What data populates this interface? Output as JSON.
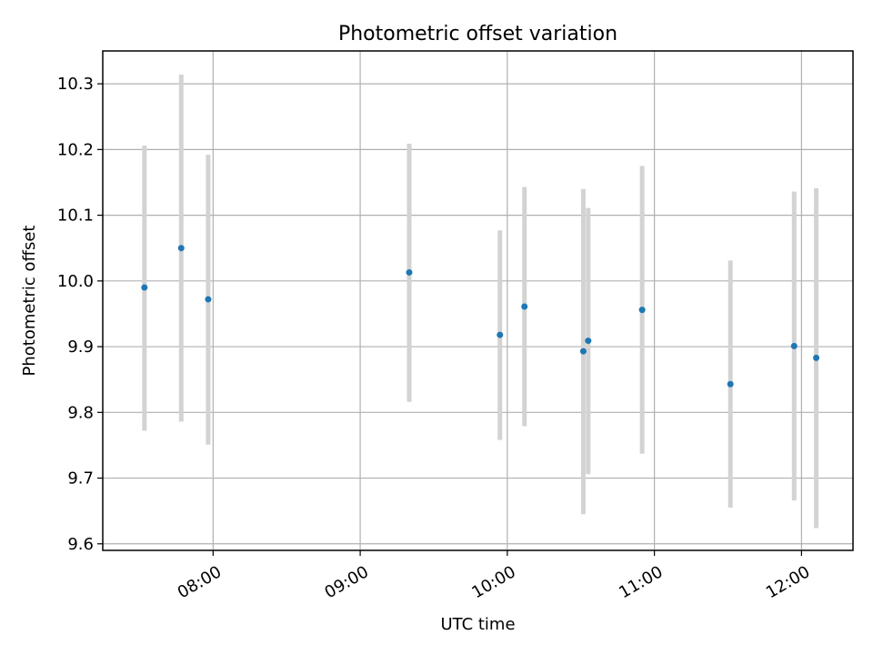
{
  "chart_data": {
    "type": "scatter",
    "title": "Photometric offset variation",
    "xlabel": "UTC time",
    "ylabel": "Photometric offset",
    "x_tick_labels": [
      "08:00",
      "09:00",
      "10:00",
      "11:00",
      "12:00"
    ],
    "y_tick_labels": [
      "9.6",
      "9.7",
      "9.8",
      "9.9",
      "10.0",
      "10.1",
      "10.2",
      "10.3"
    ],
    "xlim": [
      "07:15",
      "12:21"
    ],
    "ylim": [
      9.59,
      10.35
    ],
    "grid": true,
    "points": [
      {
        "x": "07:32",
        "y": 9.99,
        "err_low": 9.772,
        "err_high": 10.206
      },
      {
        "x": "07:47",
        "y": 10.05,
        "err_low": 9.786,
        "err_high": 10.314
      },
      {
        "x": "07:58",
        "y": 9.972,
        "err_low": 9.751,
        "err_high": 10.192
      },
      {
        "x": "09:20",
        "y": 10.013,
        "err_low": 9.816,
        "err_high": 10.209
      },
      {
        "x": "09:57",
        "y": 9.918,
        "err_low": 9.758,
        "err_high": 10.077
      },
      {
        "x": "10:07",
        "y": 9.961,
        "err_low": 9.779,
        "err_high": 10.143
      },
      {
        "x": "10:31",
        "y": 9.893,
        "err_low": 9.645,
        "err_high": 10.14
      },
      {
        "x": "10:33",
        "y": 9.909,
        "err_low": 9.706,
        "err_high": 10.111
      },
      {
        "x": "10:55",
        "y": 9.956,
        "err_low": 9.737,
        "err_high": 10.175
      },
      {
        "x": "11:31",
        "y": 9.843,
        "err_low": 9.655,
        "err_high": 10.031
      },
      {
        "x": "11:57",
        "y": 9.901,
        "err_low": 9.666,
        "err_high": 10.136
      },
      {
        "x": "12:06",
        "y": 9.883,
        "err_low": 9.624,
        "err_high": 10.141
      }
    ],
    "colors": {
      "point": "#1f77b4",
      "errorbar": "#d3d3d3",
      "grid": "#b0b0b0",
      "axis": "#000000"
    }
  }
}
